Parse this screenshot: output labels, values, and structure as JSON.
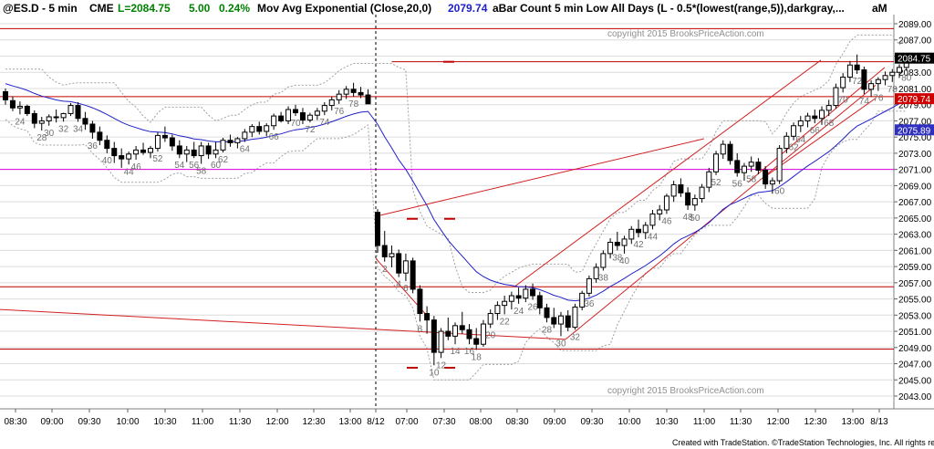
{
  "header": {
    "symbol": "@ES.D - 5 min",
    "exchange": "CME",
    "last": "L=2084.75",
    "change": "5.00",
    "pct": "0.24%",
    "study1": "Mov Avg Exponential (Close,20,0)",
    "study1_value": "2079.74",
    "study2": "aBar Count 5 min Low All Days (L - 0.5*(lowest(range,5)),darkgray,...",
    "study2_tail": "aM"
  },
  "watermark": "copyright 2015 BrooksPriceAction.com",
  "footer": "Created with TradeStation. ©TradeStation Technologies, Inc. All rights reserved.",
  "colors": {
    "ema": "#2020c8",
    "hline": "#c00000",
    "magenta": "#e000e0",
    "grid": "#dcdcdc",
    "band": "#a0a0a0",
    "up": "#ffffff",
    "down": "#000000"
  },
  "chart_data": {
    "type": "candlestick",
    "title": "@ES.D - 5 min",
    "ylim": [
      2042,
      2090.5
    ],
    "y_ticks": [
      "2089.00",
      "2087.00",
      "2085.00",
      "2083.00",
      "2081.00",
      "2079.00",
      "2077.00",
      "2075.00",
      "2073.00",
      "2071.00",
      "2069.00",
      "2067.00",
      "2065.00",
      "2063.00",
      "2061.00",
      "2059.00",
      "2057.00",
      "2055.00",
      "2053.00",
      "2051.00",
      "2049.00",
      "2047.00",
      "2045.00",
      "2043.00"
    ],
    "x_ticks": [
      "08:30",
      "09:00",
      "09:30",
      "10:00",
      "10:30",
      "11:00",
      "11:30",
      "12:00",
      "12:30",
      "13:00",
      "8/12",
      "07:00",
      "07:30",
      "08:00",
      "08:30",
      "09:00",
      "09:30",
      "10:00",
      "10:30",
      "11:00",
      "11:30",
      "12:00",
      "12:30",
      "13:00",
      "8/13"
    ],
    "price_labels": [
      {
        "text": "2084.75",
        "value": 2084.75,
        "bg": "#000000"
      },
      {
        "text": "2079.74",
        "value": 2079.74,
        "bg": "#d00000"
      },
      {
        "text": "2075.89",
        "value": 2075.89,
        "bg": "#3030c0"
      }
    ],
    "horizontal_lines": [
      {
        "value": 2088.4,
        "color": "#c00000"
      },
      {
        "value": 2080.0,
        "color": "#c00000"
      },
      {
        "value": 2071.0,
        "color": "#e000e0"
      },
      {
        "value": 2056.5,
        "color": "#c00000"
      },
      {
        "value": 2048.8,
        "color": "#c00000"
      },
      {
        "value": 2084.3,
        "color": "#c00000",
        "from_bar": 53
      }
    ],
    "candles": [
      [
        2080.6,
        2081.0,
        2079.0,
        2079.6
      ],
      [
        2079.5,
        2080.0,
        2078.2,
        2078.6
      ],
      [
        2078.6,
        2079.4,
        2077.8,
        2078.8
      ],
      [
        2078.8,
        2079.0,
        2077.6,
        2077.9
      ],
      [
        2077.9,
        2078.3,
        2076.1,
        2076.7
      ],
      [
        2076.7,
        2077.5,
        2075.8,
        2077.0
      ],
      [
        2077.0,
        2077.8,
        2076.4,
        2077.5
      ],
      [
        2077.5,
        2078.4,
        2076.8,
        2077.4
      ],
      [
        2077.4,
        2078.0,
        2076.9,
        2077.9
      ],
      [
        2077.9,
        2079.2,
        2077.6,
        2078.9
      ],
      [
        2078.9,
        2079.3,
        2076.9,
        2077.3
      ],
      [
        2077.3,
        2078.1,
        2075.9,
        2076.6
      ],
      [
        2076.6,
        2077.0,
        2074.8,
        2075.6
      ],
      [
        2075.6,
        2076.3,
        2074.0,
        2074.6
      ],
      [
        2074.6,
        2075.2,
        2073.0,
        2073.6
      ],
      [
        2073.6,
        2074.4,
        2071.8,
        2072.7
      ],
      [
        2072.7,
        2073.6,
        2071.2,
        2072.3
      ],
      [
        2072.3,
        2073.2,
        2071.6,
        2072.9
      ],
      [
        2072.9,
        2073.9,
        2072.2,
        2073.4
      ],
      [
        2073.4,
        2074.3,
        2072.8,
        2073.1
      ],
      [
        2073.1,
        2073.9,
        2072.4,
        2073.6
      ],
      [
        2073.6,
        2075.6,
        2073.2,
        2075.2
      ],
      [
        2075.2,
        2076.3,
        2074.4,
        2074.9
      ],
      [
        2074.9,
        2075.3,
        2073.3,
        2073.9
      ],
      [
        2073.9,
        2074.6,
        2072.4,
        2072.9
      ],
      [
        2072.9,
        2073.9,
        2071.9,
        2073.4
      ],
      [
        2073.4,
        2074.4,
        2072.4,
        2072.7
      ],
      [
        2072.7,
        2074.4,
        2071.7,
        2073.9
      ],
      [
        2073.9,
        2074.3,
        2072.3,
        2072.9
      ],
      [
        2072.9,
        2074.4,
        2072.4,
        2073.4
      ],
      [
        2073.4,
        2074.9,
        2073.1,
        2074.6
      ],
      [
        2074.6,
        2075.3,
        2073.8,
        2074.3
      ],
      [
        2074.3,
        2075.0,
        2073.6,
        2074.8
      ],
      [
        2074.8,
        2076.0,
        2074.4,
        2075.6
      ],
      [
        2075.6,
        2076.6,
        2075.0,
        2076.3
      ],
      [
        2076.3,
        2076.9,
        2075.3,
        2075.7
      ],
      [
        2075.7,
        2076.7,
        2075.1,
        2076.4
      ],
      [
        2076.4,
        2077.9,
        2075.9,
        2077.6
      ],
      [
        2077.6,
        2078.1,
        2076.8,
        2077.0
      ],
      [
        2077.0,
        2078.8,
        2076.6,
        2078.4
      ],
      [
        2078.4,
        2079.0,
        2077.6,
        2078.0
      ],
      [
        2078.0,
        2078.6,
        2076.6,
        2077.1
      ],
      [
        2077.1,
        2078.0,
        2076.8,
        2077.7
      ],
      [
        2077.7,
        2078.6,
        2077.1,
        2078.2
      ],
      [
        2078.2,
        2079.3,
        2077.7,
        2078.9
      ],
      [
        2078.9,
        2080.0,
        2078.3,
        2079.6
      ],
      [
        2079.6,
        2080.8,
        2079.1,
        2080.3
      ],
      [
        2080.3,
        2081.3,
        2079.7,
        2080.9
      ],
      [
        2080.9,
        2081.7,
        2080.0,
        2080.5
      ],
      [
        2080.5,
        2081.2,
        2079.8,
        2080.2
      ],
      [
        2080.2,
        2080.9,
        2079.4,
        2079.1
      ],
      [
        2065.7,
        2066.1,
        2060.7,
        2061.6
      ],
      [
        2061.6,
        2063.4,
        2059.6,
        2060.2
      ],
      [
        2060.2,
        2061.6,
        2058.9,
        2060.6
      ],
      [
        2060.6,
        2061.1,
        2057.7,
        2058.2
      ],
      [
        2058.2,
        2060.6,
        2057.2,
        2059.7
      ],
      [
        2059.7,
        2060.1,
        2055.7,
        2056.2
      ],
      [
        2056.2,
        2056.7,
        2052.2,
        2053.2
      ],
      [
        2053.2,
        2054.1,
        2050.7,
        2052.4
      ],
      [
        2052.4,
        2052.9,
        2046.8,
        2048.4
      ],
      [
        2048.4,
        2051.4,
        2047.7,
        2051.0
      ],
      [
        2051.0,
        2052.7,
        2049.9,
        2050.4
      ],
      [
        2050.4,
        2052.1,
        2049.4,
        2051.7
      ],
      [
        2051.7,
        2053.4,
        2050.7,
        2051.2
      ],
      [
        2051.2,
        2051.9,
        2049.4,
        2050.1
      ],
      [
        2050.1,
        2051.4,
        2048.7,
        2049.4
      ],
      [
        2049.4,
        2052.4,
        2049.1,
        2051.9
      ],
      [
        2051.9,
        2053.7,
        2051.4,
        2053.2
      ],
      [
        2053.2,
        2054.7,
        2052.4,
        2054.2
      ],
      [
        2054.2,
        2055.4,
        2053.1,
        2054.7
      ],
      [
        2054.7,
        2055.9,
        2053.7,
        2055.4
      ],
      [
        2055.4,
        2056.4,
        2054.4,
        2055.1
      ],
      [
        2055.1,
        2056.7,
        2054.6,
        2056.2
      ],
      [
        2056.2,
        2056.9,
        2054.9,
        2055.4
      ],
      [
        2055.4,
        2055.9,
        2053.1,
        2053.9
      ],
      [
        2053.9,
        2054.4,
        2052.1,
        2052.7
      ],
      [
        2052.7,
        2053.9,
        2051.4,
        2051.9
      ],
      [
        2051.9,
        2053.4,
        2050.4,
        2052.9
      ],
      [
        2052.9,
        2053.6,
        2051.0,
        2051.5
      ],
      [
        2051.5,
        2054.4,
        2051.2,
        2054.0
      ],
      [
        2054.0,
        2056.0,
        2053.6,
        2055.7
      ],
      [
        2055.7,
        2057.9,
        2055.3,
        2057.5
      ],
      [
        2057.5,
        2059.4,
        2057.0,
        2058.9
      ],
      [
        2058.9,
        2061.0,
        2058.5,
        2060.6
      ],
      [
        2060.6,
        2062.5,
        2060.0,
        2062.0
      ],
      [
        2062.0,
        2063.3,
        2061.0,
        2061.6
      ],
      [
        2061.6,
        2062.8,
        2060.6,
        2062.4
      ],
      [
        2062.4,
        2064.0,
        2061.8,
        2063.6
      ],
      [
        2063.6,
        2064.8,
        2062.6,
        2063.2
      ],
      [
        2063.2,
        2064.5,
        2062.4,
        2064.1
      ],
      [
        2064.1,
        2066.0,
        2063.6,
        2065.5
      ],
      [
        2065.5,
        2066.6,
        2064.7,
        2066.0
      ],
      [
        2066.0,
        2068.0,
        2065.5,
        2067.7
      ],
      [
        2067.7,
        2069.6,
        2067.0,
        2069.1
      ],
      [
        2069.1,
        2069.9,
        2067.6,
        2068.1
      ],
      [
        2068.1,
        2068.8,
        2066.0,
        2066.6
      ],
      [
        2066.6,
        2067.9,
        2065.9,
        2067.4
      ],
      [
        2067.4,
        2069.2,
        2066.9,
        2068.8
      ],
      [
        2068.8,
        2071.2,
        2068.2,
        2070.7
      ],
      [
        2070.7,
        2073.3,
        2070.3,
        2072.9
      ],
      [
        2072.9,
        2074.6,
        2072.3,
        2074.1
      ],
      [
        2074.1,
        2074.5,
        2071.6,
        2072.1
      ],
      [
        2072.1,
        2073.0,
        2070.1,
        2070.6
      ],
      [
        2070.6,
        2071.8,
        2069.6,
        2071.4
      ],
      [
        2071.4,
        2072.6,
        2070.7,
        2071.9
      ],
      [
        2071.9,
        2072.4,
        2070.4,
        2070.9
      ],
      [
        2070.9,
        2071.4,
        2068.6,
        2069.2
      ],
      [
        2069.2,
        2070.0,
        2068.0,
        2069.6
      ],
      [
        2069.6,
        2074.0,
        2069.2,
        2073.6
      ],
      [
        2073.6,
        2075.6,
        2073.0,
        2075.1
      ],
      [
        2075.1,
        2076.8,
        2074.6,
        2076.4
      ],
      [
        2076.4,
        2077.6,
        2075.6,
        2077.0
      ],
      [
        2077.0,
        2078.0,
        2076.2,
        2077.6
      ],
      [
        2077.6,
        2078.4,
        2076.7,
        2077.3
      ],
      [
        2077.3,
        2078.8,
        2076.5,
        2078.3
      ],
      [
        2078.3,
        2079.6,
        2077.6,
        2078.9
      ],
      [
        2078.9,
        2081.6,
        2078.5,
        2081.1
      ],
      [
        2081.1,
        2082.9,
        2080.5,
        2082.4
      ],
      [
        2082.4,
        2084.4,
        2081.8,
        2083.9
      ],
      [
        2083.9,
        2085.2,
        2082.8,
        2083.3
      ],
      [
        2083.3,
        2083.7,
        2080.3,
        2080.9
      ],
      [
        2080.9,
        2082.0,
        2080.0,
        2081.6
      ],
      [
        2081.6,
        2082.4,
        2080.7,
        2082.1
      ],
      [
        2082.1,
        2083.1,
        2081.4,
        2082.6
      ],
      [
        2082.6,
        2083.4,
        2081.8,
        2083.0
      ],
      [
        2083.0,
        2084.0,
        2082.3,
        2083.6
      ],
      [
        2083.6,
        2085.0,
        2083.2,
        2084.75
      ]
    ],
    "bar_count_labels": [
      {
        "bar": 2,
        "text": "24"
      },
      {
        "bar": 5,
        "text": "28"
      },
      {
        "bar": 6,
        "text": "30"
      },
      {
        "bar": 8,
        "text": "32"
      },
      {
        "bar": 10,
        "text": "34"
      },
      {
        "bar": 12,
        "text": "36"
      },
      {
        "bar": 14,
        "text": "40"
      },
      {
        "bar": 17,
        "text": "44"
      },
      {
        "bar": 18,
        "text": "46"
      },
      {
        "bar": 21,
        "text": "52"
      },
      {
        "bar": 24,
        "text": "54"
      },
      {
        "bar": 26,
        "text": "56"
      },
      {
        "bar": 27,
        "text": "58"
      },
      {
        "bar": 29,
        "text": "60"
      },
      {
        "bar": 30,
        "text": "62"
      },
      {
        "bar": 33,
        "text": "64"
      },
      {
        "bar": 37,
        "text": "66"
      },
      {
        "bar": 40,
        "text": "70"
      },
      {
        "bar": 42,
        "text": "72"
      },
      {
        "bar": 44,
        "text": "74"
      },
      {
        "bar": 46,
        "text": "76"
      },
      {
        "bar": 48,
        "text": "78"
      },
      {
        "bar": 52,
        "text": "2"
      },
      {
        "bar": 54,
        "text": "4"
      },
      {
        "bar": 55,
        "text": "6"
      },
      {
        "bar": 57,
        "text": "8"
      },
      {
        "bar": 59,
        "text": "10"
      },
      {
        "bar": 60,
        "text": "12"
      },
      {
        "bar": 62,
        "text": "14"
      },
      {
        "bar": 64,
        "text": "16"
      },
      {
        "bar": 65,
        "text": "18"
      },
      {
        "bar": 67,
        "text": "20"
      },
      {
        "bar": 69,
        "text": "22"
      },
      {
        "bar": 71,
        "text": "24"
      },
      {
        "bar": 73,
        "text": "26"
      },
      {
        "bar": 75,
        "text": "28"
      },
      {
        "bar": 77,
        "text": "30"
      },
      {
        "bar": 79,
        "text": "32"
      },
      {
        "bar": 81,
        "text": "36"
      },
      {
        "bar": 83,
        "text": "38"
      },
      {
        "bar": 85,
        "text": "38"
      },
      {
        "bar": 86,
        "text": "40"
      },
      {
        "bar": 88,
        "text": "42"
      },
      {
        "bar": 90,
        "text": "44"
      },
      {
        "bar": 92,
        "text": "46"
      },
      {
        "bar": 95,
        "text": "48"
      },
      {
        "bar": 96,
        "text": "50"
      },
      {
        "bar": 99,
        "text": "52"
      },
      {
        "bar": 102,
        "text": "56"
      },
      {
        "bar": 104,
        "text": "58"
      },
      {
        "bar": 108,
        "text": "60"
      },
      {
        "bar": 110,
        "text": "62"
      },
      {
        "bar": 111,
        "text": "64"
      },
      {
        "bar": 113,
        "text": "66"
      },
      {
        "bar": 115,
        "text": "68"
      },
      {
        "bar": 117,
        "text": "70"
      },
      {
        "bar": 119,
        "text": "72"
      },
      {
        "bar": 120,
        "text": "74"
      },
      {
        "bar": 122,
        "text": "76"
      },
      {
        "bar": 124,
        "text": "78"
      },
      {
        "bar": 126,
        "text": "80"
      }
    ]
  }
}
